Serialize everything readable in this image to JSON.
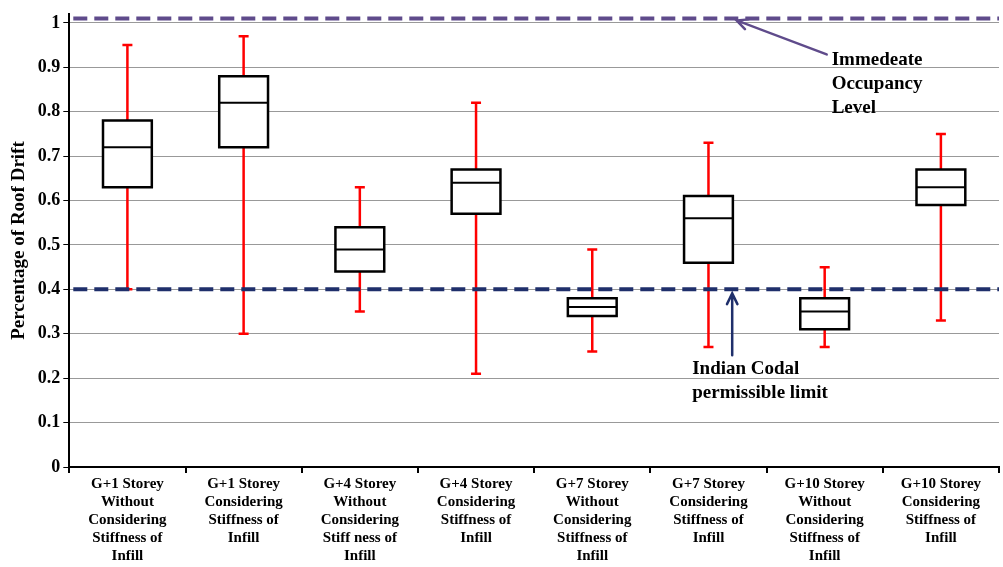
{
  "chart_data": {
    "type": "box",
    "ylabel": "Percentage of Roof Drift",
    "categories": [
      "G+1 Storey Without Considering Stiffness of Infill",
      "G+1 Storey Considering Stiffness of Infill",
      "G+4 Storey Without Considering Stiff ness of Infill",
      "G+4 Storey Considering Stiffness of Infill",
      "G+7 Storey Without Considering Stiffness of Infill",
      "G+7 Storey Considering Stiffness of Infill",
      "G+10 Storey Without Considering Stiffness of Infill",
      "G+10 Storey Considering Stiffness of Infill"
    ],
    "boxes": [
      {
        "low": 0.4,
        "q1": 0.63,
        "median": 0.72,
        "q3": 0.78,
        "high": 0.95
      },
      {
        "low": 0.3,
        "q1": 0.72,
        "median": 0.82,
        "q3": 0.88,
        "high": 0.97
      },
      {
        "low": 0.35,
        "q1": 0.44,
        "median": 0.49,
        "q3": 0.54,
        "high": 0.63
      },
      {
        "low": 0.21,
        "q1": 0.57,
        "median": 0.64,
        "q3": 0.67,
        "high": 0.82
      },
      {
        "low": 0.26,
        "q1": 0.34,
        "median": 0.36,
        "q3": 0.38,
        "high": 0.49
      },
      {
        "low": 0.27,
        "q1": 0.46,
        "median": 0.56,
        "q3": 0.61,
        "high": 0.73
      },
      {
        "low": 0.27,
        "q1": 0.31,
        "median": 0.35,
        "q3": 0.38,
        "high": 0.45
      },
      {
        "low": 0.33,
        "q1": 0.59,
        "median": 0.63,
        "q3": 0.67,
        "high": 0.75
      }
    ],
    "color": "#000000",
    "ylim": [
      0,
      1.02
    ],
    "yticks": [
      0,
      0.1,
      0.2,
      0.3,
      0.4,
      0.5,
      0.6,
      0.7,
      0.8,
      0.9,
      1
    ],
    "grid": "y",
    "legend": false,
    "ref_lines": [
      {
        "axis": "y",
        "value": 1.01,
        "label": "Immedeate Occupancy Level",
        "color": "#5f4b8b",
        "line_style": "dashed"
      },
      {
        "axis": "y",
        "value": 0.4,
        "label": "Indian Codal permissible limit",
        "color": "#1f2f6b",
        "line_style": "dashed"
      }
    ]
  }
}
